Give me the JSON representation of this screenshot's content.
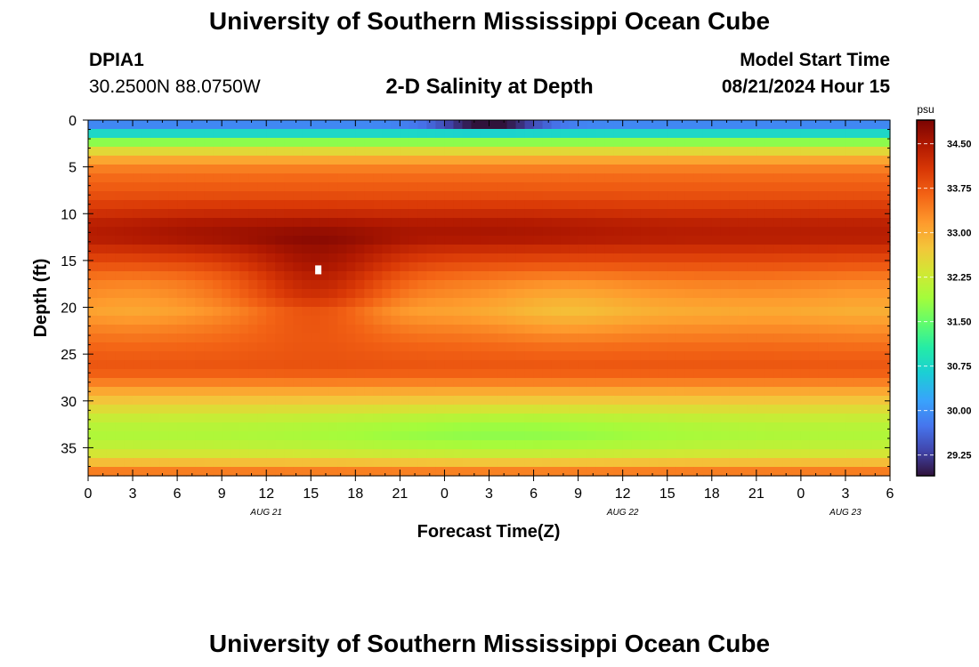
{
  "header": {
    "title": "University of Southern Mississippi Ocean Cube",
    "station_id": "DPIA1",
    "station_coords": "30.2500N  88.0750W",
    "plot_title": "2-D Salinity at Depth",
    "model_start_label": "Model Start Time",
    "model_start_value": "08/21/2024 Hour 15"
  },
  "footer": {
    "title": "University of Southern Mississippi Ocean Cube"
  },
  "chart_data": {
    "type": "heatmap",
    "title": "2-D Salinity at Depth",
    "xlabel": "Forecast Time(Z)",
    "ylabel": "Depth (ft)",
    "x_ticks": [
      "0",
      "3",
      "6",
      "9",
      "12",
      "15",
      "18",
      "21",
      "0",
      "3",
      "6",
      "9",
      "12",
      "15",
      "18",
      "21",
      "0",
      "3",
      "6"
    ],
    "x_date_labels": [
      {
        "label": "AUG 21",
        "at_tick": 4
      },
      {
        "label": "AUG 22",
        "at_tick": 12
      },
      {
        "label": "AUG 23",
        "at_tick": 17
      }
    ],
    "xlim_hours": [
      0,
      54
    ],
    "y_ticks": [
      0,
      5,
      10,
      15,
      20,
      25,
      30,
      35
    ],
    "ylim": [
      0,
      38
    ],
    "y_inverted": true,
    "colorbar": {
      "label": "psu",
      "min": 28.9,
      "max": 34.9,
      "ticks": [
        "34.50",
        "33.75",
        "33.00",
        "32.25",
        "31.50",
        "30.75",
        "30.00",
        "29.25"
      ]
    },
    "depth_profile": [
      {
        "depth": 0.0,
        "salinity": 29.6
      },
      {
        "depth": 0.7,
        "salinity": 30.1
      },
      {
        "depth": 1.5,
        "salinity": 30.8
      },
      {
        "depth": 2.2,
        "salinity": 31.6
      },
      {
        "depth": 3.0,
        "salinity": 32.3
      },
      {
        "depth": 3.8,
        "salinity": 32.9
      },
      {
        "depth": 4.6,
        "salinity": 33.2
      },
      {
        "depth": 5.5,
        "salinity": 33.5
      },
      {
        "depth": 6.5,
        "salinity": 33.6
      },
      {
        "depth": 8.0,
        "salinity": 33.8
      },
      {
        "depth": 9.5,
        "salinity": 34.05
      },
      {
        "depth": 11.0,
        "salinity": 34.35
      },
      {
        "depth": 12.5,
        "salinity": 34.45
      },
      {
        "depth": 14.0,
        "salinity": 34.1
      },
      {
        "depth": 15.5,
        "salinity": 33.8
      },
      {
        "depth": 17.0,
        "salinity": 33.5
      },
      {
        "depth": 19.0,
        "salinity": 33.35
      },
      {
        "depth": 20.5,
        "salinity": 33.2
      },
      {
        "depth": 22.0,
        "salinity": 33.4
      },
      {
        "depth": 24.0,
        "salinity": 33.6
      },
      {
        "depth": 26.0,
        "salinity": 33.75
      },
      {
        "depth": 27.5,
        "salinity": 33.6
      },
      {
        "depth": 28.5,
        "salinity": 33.2
      },
      {
        "depth": 29.5,
        "salinity": 32.9
      },
      {
        "depth": 30.5,
        "salinity": 32.6
      },
      {
        "depth": 31.5,
        "salinity": 32.3
      },
      {
        "depth": 32.5,
        "salinity": 32.1
      },
      {
        "depth": 34.0,
        "salinity": 32.0
      },
      {
        "depth": 35.5,
        "salinity": 32.3
      },
      {
        "depth": 36.5,
        "salinity": 32.8
      },
      {
        "depth": 37.5,
        "salinity": 33.4
      },
      {
        "depth": 38.0,
        "salinity": 33.6
      }
    ],
    "features": [
      {
        "t": 15.5,
        "depth": 17.5,
        "st": 3.5,
        "sd": 3.5,
        "delta": 0.85
      },
      {
        "t": 8.0,
        "depth": 12.0,
        "st": 4.0,
        "sd": 2.0,
        "delta": 0.15
      },
      {
        "t": 27.0,
        "depth": 11.5,
        "st": 6.0,
        "sd": 1.8,
        "delta": 0.12
      },
      {
        "t": 3.0,
        "depth": 19.5,
        "st": 3.0,
        "sd": 2.5,
        "delta": -0.15
      },
      {
        "t": 20.5,
        "depth": 20.0,
        "st": 3.0,
        "sd": 2.0,
        "delta": -0.15
      },
      {
        "t": 32.0,
        "depth": 20.0,
        "st": 4.0,
        "sd": 2.5,
        "delta": -0.35
      },
      {
        "t": 42.0,
        "depth": 20.5,
        "st": 5.0,
        "sd": 2.5,
        "delta": -0.15
      },
      {
        "t": 53.0,
        "depth": 20.0,
        "st": 4.0,
        "sd": 3.0,
        "delta": -0.2
      },
      {
        "t": 28.0,
        "depth": 33.5,
        "st": 8.0,
        "sd": 2.0,
        "delta": -0.25
      },
      {
        "t": 27.0,
        "depth": 0.2,
        "st": 2.5,
        "sd": 0.5,
        "delta": -1.3
      }
    ],
    "marker": {
      "t": 15.5,
      "depth": 16.0
    }
  }
}
